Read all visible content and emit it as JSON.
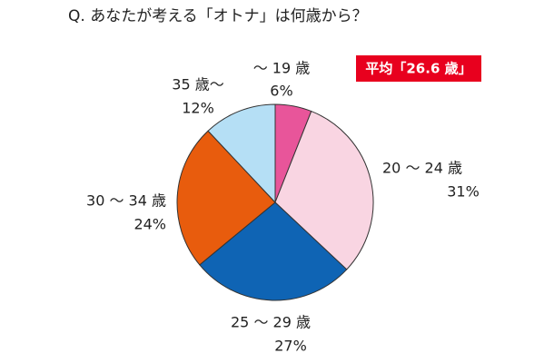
{
  "chart_data": {
    "type": "pie",
    "title": "Q. あなたが考える「オトナ」は何歳から？",
    "annotation": "平均「26.6 歳」",
    "categories": [
      "～ 19 歳",
      "20 ～ 24 歳",
      "25 ～ 29 歳",
      "30 ～ 34 歳",
      "35 歳～"
    ],
    "values": [
      6,
      31,
      27,
      24,
      12
    ],
    "value_labels": [
      "6%",
      "31%",
      "27%",
      "24%",
      "12%"
    ],
    "colors": [
      "#e8559a",
      "#f9d5e2",
      "#0f64b4",
      "#e85c0d",
      "#b5dff5"
    ]
  }
}
